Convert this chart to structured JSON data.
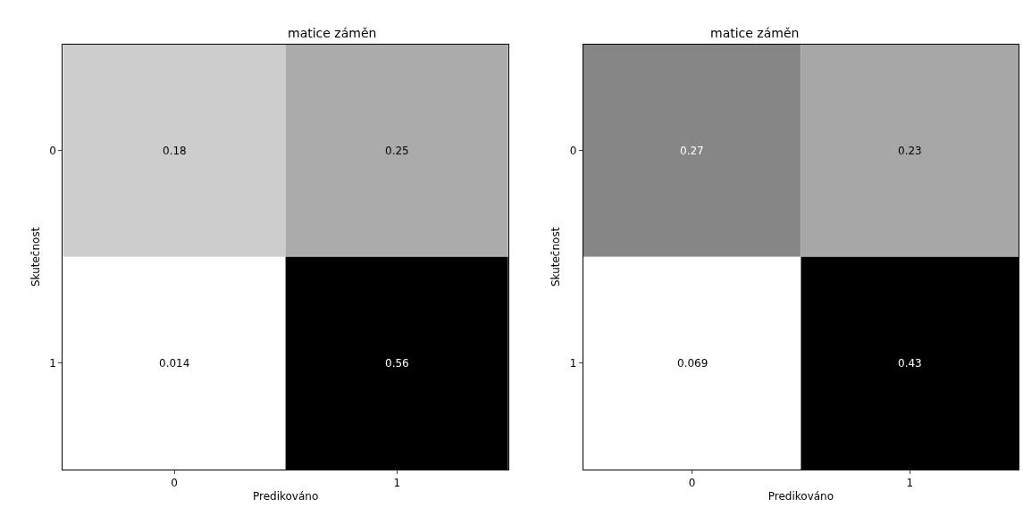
{
  "chart_data": [
    {
      "type": "heatmap",
      "title": "matice záměn",
      "xlabel": "Predikováno",
      "ylabel": "Skutečnost",
      "categories": [
        "0",
        "1"
      ],
      "y_categories": [
        "0",
        "1"
      ],
      "cells": [
        [
          0.18,
          0.25
        ],
        [
          0.014,
          0.56
        ]
      ],
      "data_labels": true
    },
    {
      "type": "heatmap",
      "title": "matice záměn",
      "xlabel": "Predikováno",
      "ylabel": "Skutečnost",
      "categories": [
        "0",
        "1"
      ],
      "y_categories": [
        "0",
        "1"
      ],
      "cells": [
        [
          0.27,
          0.23
        ],
        [
          0.069,
          0.43
        ]
      ],
      "data_labels": true
    }
  ]
}
